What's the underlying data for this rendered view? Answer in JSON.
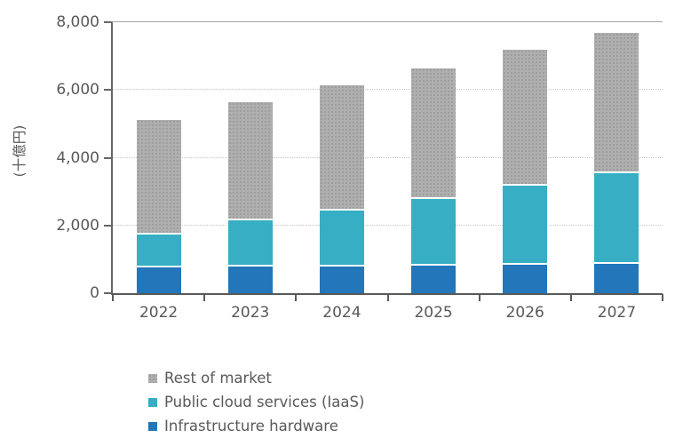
{
  "chart_data": {
    "type": "bar",
    "stacked": true,
    "title": "",
    "xlabel": "",
    "ylabel": "(十億円)",
    "ylim": [
      0,
      8000
    ],
    "ytick_interval": 2000,
    "yticks": [
      {
        "value": 0,
        "label": "0"
      },
      {
        "value": 2000,
        "label": "2,000"
      },
      {
        "value": 4000,
        "label": "4,000"
      },
      {
        "value": 6000,
        "label": "6,000"
      },
      {
        "value": 8000,
        "label": "8,000"
      }
    ],
    "grid": "horizontal-dotted",
    "categories": [
      "2022",
      "2023",
      "2024",
      "2025",
      "2026",
      "2027"
    ],
    "series": [
      {
        "name": "Infrastructure hardware",
        "color": "#2276B9",
        "texture": "solid",
        "values": [
          760,
          800,
          800,
          820,
          840,
          865
        ]
      },
      {
        "name": "Public cloud services (IaaS)",
        "color": "#37AEC3",
        "texture": "solid",
        "values": [
          960,
          1340,
          1630,
          1960,
          2330,
          2675
        ]
      },
      {
        "name": "Rest of market",
        "color": "#AFAFAF",
        "texture": "dots",
        "values": [
          3390,
          3500,
          3700,
          3850,
          4010,
          4150
        ]
      }
    ],
    "stacked_totals": [
      5110,
      5640,
      6130,
      6630,
      7180,
      7690
    ],
    "legend_position": "bottom-left",
    "legend_order": [
      "Rest of market",
      "Public cloud services (IaaS)",
      "Infrastructure hardware"
    ]
  },
  "colors": {
    "axis_line": "#666666",
    "top_border_line": "#a6a6a6",
    "gridline": "#c6c6c6",
    "text": "#595959",
    "segment_gap": "#ffffff",
    "background": "#ffffff"
  }
}
